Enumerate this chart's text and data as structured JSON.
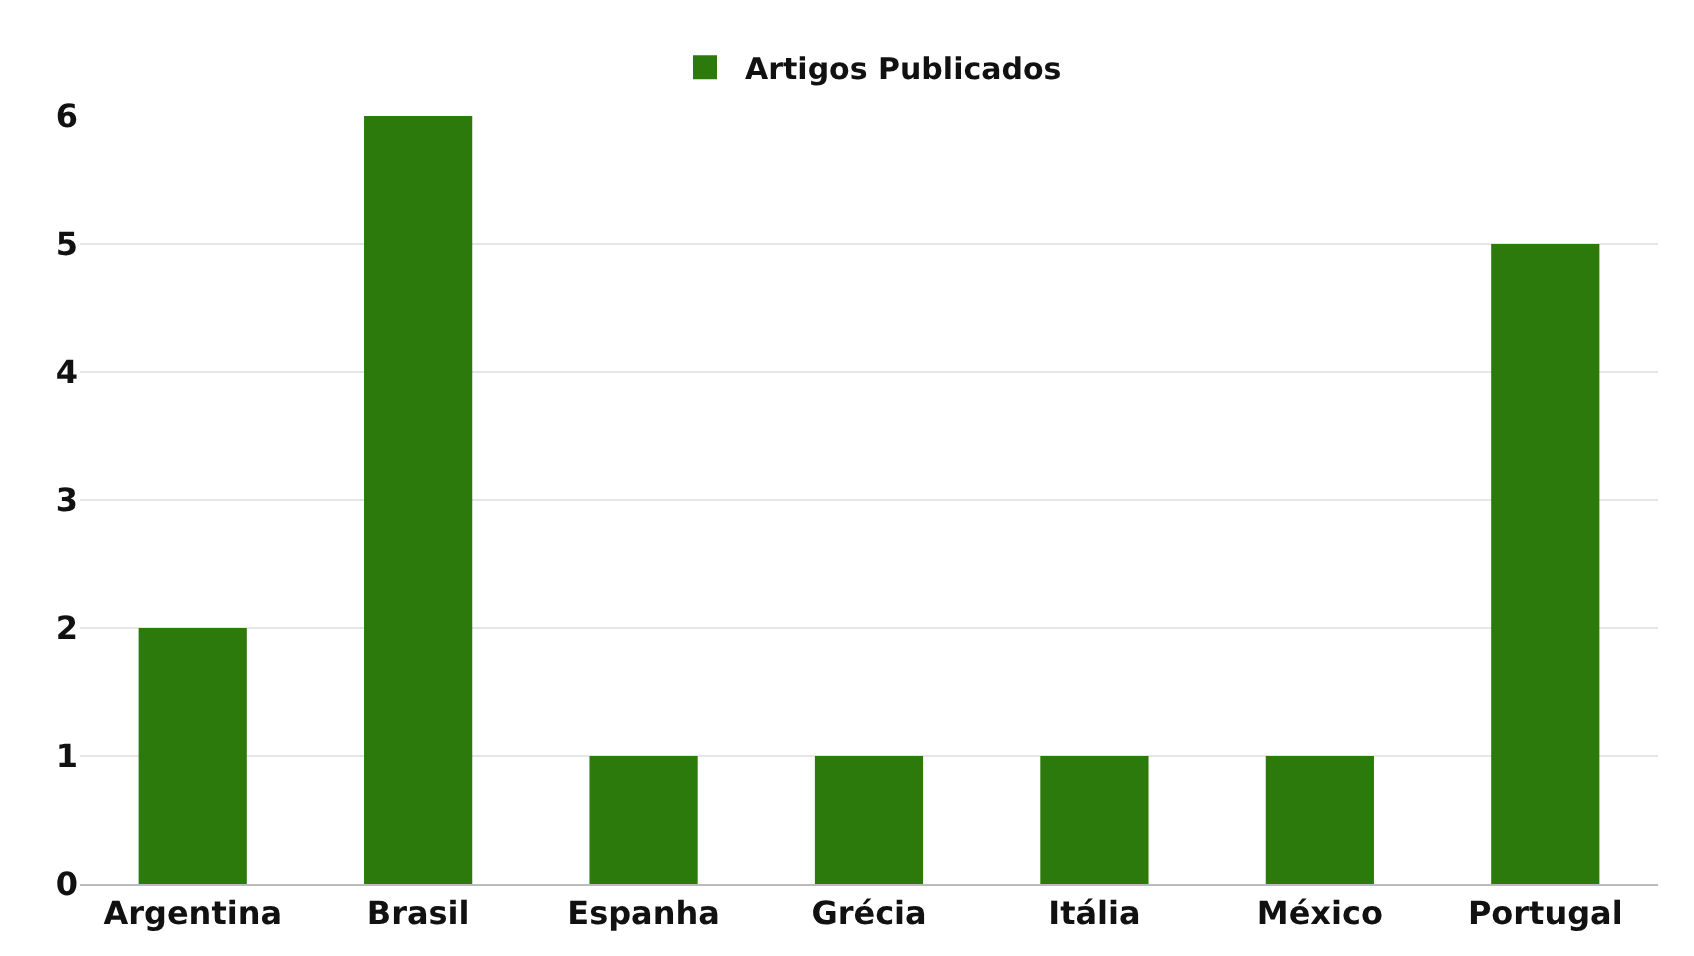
{
  "chart_data": {
    "type": "bar",
    "categories": [
      "Argentina",
      "Brasil",
      "Espanha",
      "Grécia",
      "Itália",
      "México",
      "Portugal"
    ],
    "series": [
      {
        "name": "Artigos Publicados",
        "color": "#2b7a0b",
        "values": [
          2,
          6,
          1,
          1,
          1,
          1,
          5
        ]
      }
    ],
    "ylim": [
      0,
      6
    ],
    "yticks": [
      0,
      1,
      2,
      3,
      4,
      5,
      6
    ],
    "grid": "y",
    "legend": "top"
  }
}
